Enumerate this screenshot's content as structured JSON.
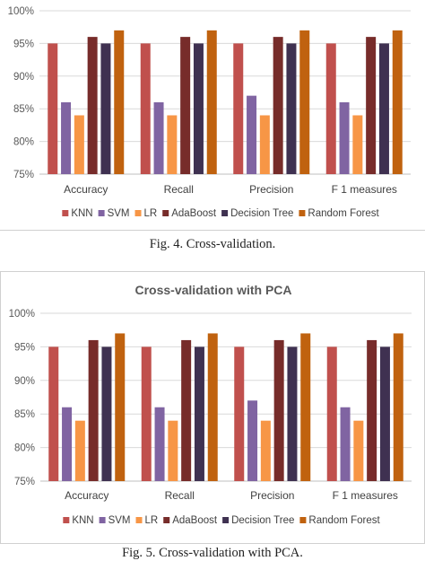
{
  "chart_data": [
    {
      "type": "bar",
      "title": "",
      "categories": [
        "Accuracy",
        "Recall",
        "Precision",
        "F 1 measures"
      ],
      "series": [
        {
          "name": "KNN",
          "color": "#c0504d",
          "values": [
            95,
            95,
            95,
            95
          ]
        },
        {
          "name": "SVM",
          "color": "#8064a2",
          "values": [
            86,
            86,
            87,
            86
          ]
        },
        {
          "name": "LR",
          "color": "#f79646",
          "values": [
            84,
            84,
            84,
            84
          ]
        },
        {
          "name": "AdaBoost",
          "color": "#772c2a",
          "values": [
            96,
            96,
            96,
            96
          ]
        },
        {
          "name": "Decision Tree",
          "color": "#3f3151",
          "values": [
            95,
            95,
            95,
            95
          ]
        },
        {
          "name": "Random Forest",
          "color": "#c0620f",
          "values": [
            97,
            97,
            97,
            97
          ]
        }
      ],
      "ylim": [
        75,
        100
      ],
      "yticks": [
        "75%",
        "80%",
        "85%",
        "90%",
        "95%",
        "100%"
      ],
      "xlabel": "",
      "ylabel": "",
      "legend": "bottom",
      "grid": true
    },
    {
      "type": "bar",
      "title": "Cross-validation with PCA",
      "categories": [
        "Accuracy",
        "Recall",
        "Precision",
        "F 1 measures"
      ],
      "series": [
        {
          "name": "KNN",
          "color": "#c0504d",
          "values": [
            95,
            95,
            95,
            95
          ]
        },
        {
          "name": "SVM",
          "color": "#8064a2",
          "values": [
            86,
            86,
            87,
            86
          ]
        },
        {
          "name": "LR",
          "color": "#f79646",
          "values": [
            84,
            84,
            84,
            84
          ]
        },
        {
          "name": "AdaBoost",
          "color": "#772c2a",
          "values": [
            96,
            96,
            96,
            96
          ]
        },
        {
          "name": "Decision Tree",
          "color": "#3f3151",
          "values": [
            95,
            95,
            95,
            95
          ]
        },
        {
          "name": "Random Forest",
          "color": "#c0620f",
          "values": [
            97,
            97,
            97,
            97
          ]
        }
      ],
      "ylim": [
        75,
        100
      ],
      "yticks": [
        "75%",
        "80%",
        "85%",
        "90%",
        "95%",
        "100%"
      ],
      "xlabel": "",
      "ylabel": "",
      "legend": "bottom",
      "grid": true
    }
  ],
  "captions": {
    "fig4": "Fig. 4.    Cross-validation.",
    "fig5": "Fig. 5.    Cross-validation with PCA."
  }
}
